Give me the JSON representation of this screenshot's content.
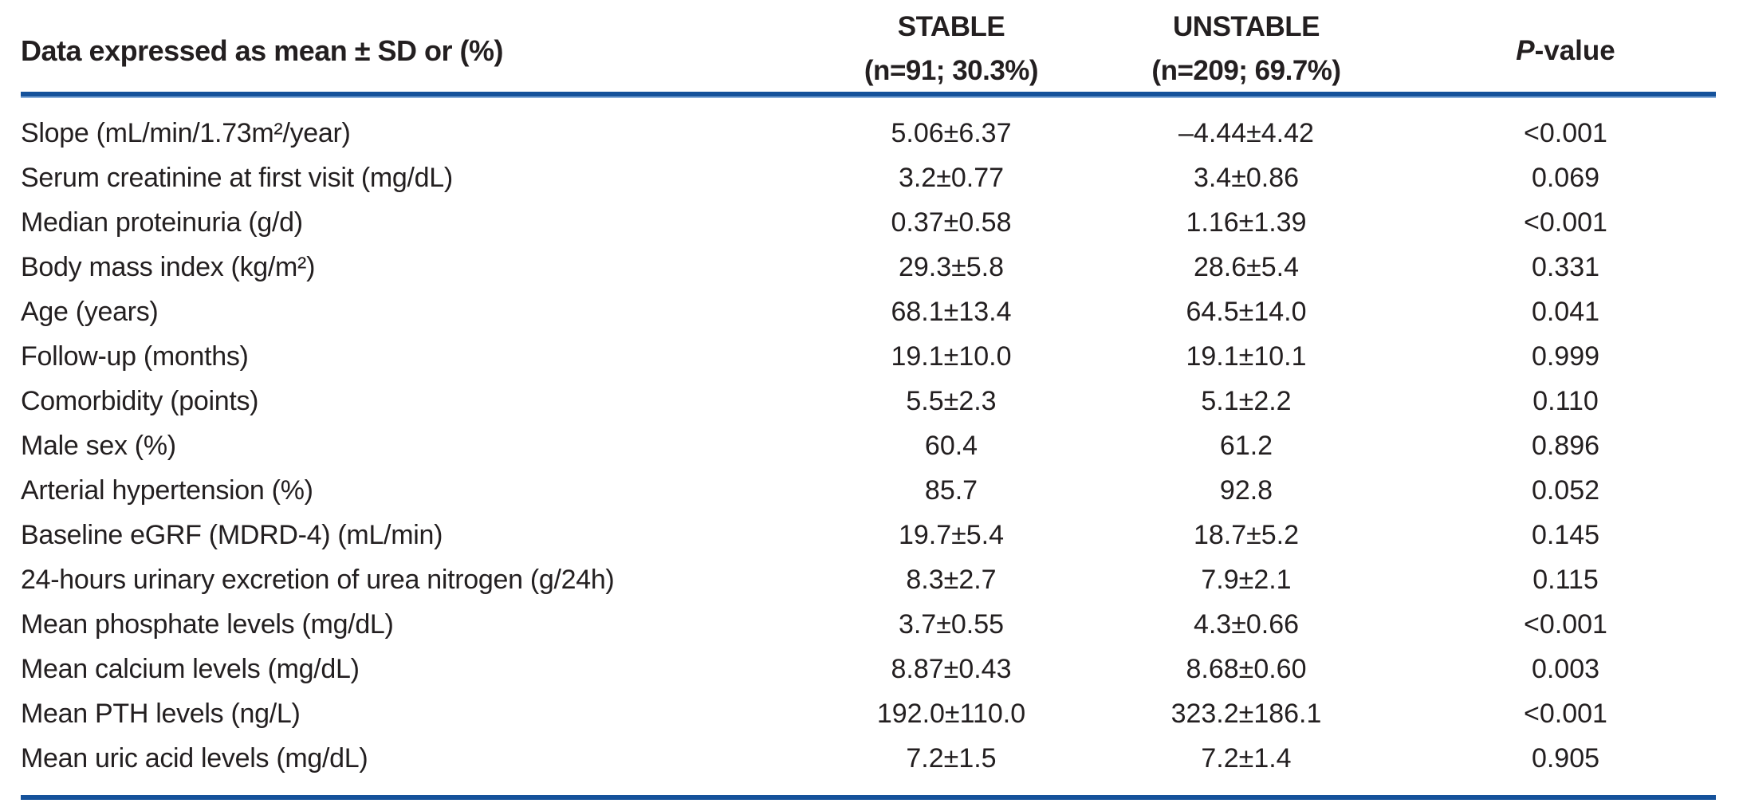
{
  "table": {
    "header": {
      "label_col": "Data expressed as mean ± SD or (%)",
      "stable_line1": "STABLE",
      "stable_line2": "(n=91; 30.3%)",
      "unstable_line1": "UNSTABLE",
      "unstable_line2": "(n=209; 69.7%)",
      "pvalue_italic": "P",
      "pvalue_rest": "-value"
    },
    "rows": [
      {
        "label": "Slope (mL/min/1.73m²/year)",
        "stable": "5.06±6.37",
        "unstable": "–4.44±4.42",
        "p": "<0.001"
      },
      {
        "label": "Serum creatinine at first visit (mg/dL)",
        "stable": "3.2±0.77",
        "unstable": "3.4±0.86",
        "p": "0.069"
      },
      {
        "label": "Median proteinuria (g/d)",
        "stable": "0.37±0.58",
        "unstable": "1.16±1.39",
        "p": "<0.001"
      },
      {
        "label": "Body mass index (kg/m²)",
        "stable": "29.3±5.8",
        "unstable": "28.6±5.4",
        "p": "0.331"
      },
      {
        "label": "Age (years)",
        "stable": "68.1±13.4",
        "unstable": "64.5±14.0",
        "p": "0.041"
      },
      {
        "label": "Follow-up (months)",
        "stable": "19.1±10.0",
        "unstable": "19.1±10.1",
        "p": "0.999"
      },
      {
        "label": "Comorbidity (points)",
        "stable": "5.5±2.3",
        "unstable": "5.1±2.2",
        "p": "0.110"
      },
      {
        "label": "Male sex (%)",
        "stable": "60.4",
        "unstable": "61.2",
        "p": "0.896"
      },
      {
        "label": "Arterial hypertension (%)",
        "stable": "85.7",
        "unstable": "92.8",
        "p": "0.052"
      },
      {
        "label": "Baseline eGRF (MDRD-4) (mL/min)",
        "stable": "19.7±5.4",
        "unstable": "18.7±5.2",
        "p": "0.145"
      },
      {
        "label": "24-hours urinary excretion of urea nitrogen (g/24h)",
        "stable": "8.3±2.7",
        "unstable": "7.9±2.1",
        "p": "0.115"
      },
      {
        "label": "Mean phosphate levels (mg/dL)",
        "stable": "3.7±0.55",
        "unstable": "4.3±0.66",
        "p": "<0.001"
      },
      {
        "label": "Mean calcium levels (mg/dL)",
        "stable": "8.87±0.43",
        "unstable": "8.68±0.60",
        "p": "0.003"
      },
      {
        "label": "Mean PTH levels (ng/L)",
        "stable": "192.0±110.0",
        "unstable": "323.2±186.1",
        "p": "<0.001"
      },
      {
        "label": "Mean uric acid levels (mg/dL)",
        "stable": "7.2±1.5",
        "unstable": "7.2±1.4",
        "p": "0.905"
      }
    ],
    "colors": {
      "rule_dark": "#15529b",
      "rule_light": "#8ab0dc",
      "text": "#231f20"
    }
  }
}
